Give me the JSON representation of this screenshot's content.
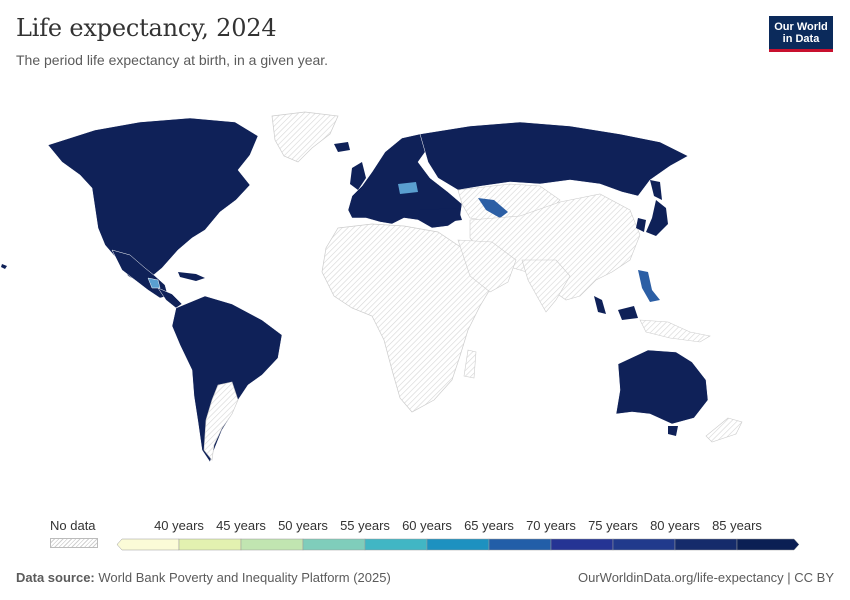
{
  "header": {
    "title": "Life expectancy, 2024",
    "subtitle": "The period life expectancy at birth, in a given year."
  },
  "logo": {
    "line1": "Our World",
    "line2": "in Data"
  },
  "legend": {
    "no_data_label": "No data",
    "ticks": [
      "40 years",
      "45 years",
      "50 years",
      "55 years",
      "60 years",
      "65 years",
      "70 years",
      "75 years",
      "80 years",
      "85 years"
    ],
    "colors": [
      "#fbfbd7",
      "#e3f1b0",
      "#c1e5b1",
      "#7fcdbb",
      "#41b6c4",
      "#1d91c0",
      "#225ea8",
      "#253494",
      "#213a8c",
      "#152b6b",
      "#0b1f54"
    ]
  },
  "colors": {
    "high": "#0f2158",
    "mid": "#2c5fa5",
    "light": "#5a9fd0",
    "no_data_stroke": "#cccccc"
  },
  "footer": {
    "source_label": "Data source:",
    "source_value": "World Bank Poverty and Inequality Platform (2025)",
    "right": "OurWorldinData.org/life-expectancy | CC BY"
  }
}
